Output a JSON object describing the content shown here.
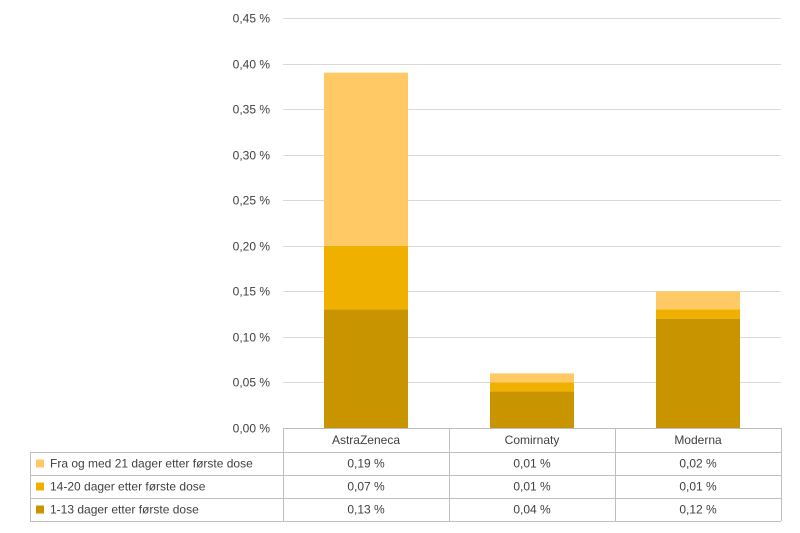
{
  "chart_data": {
    "type": "bar",
    "stacked": true,
    "categories": [
      "AstraZeneca",
      "Comirnaty",
      "Moderna"
    ],
    "series": [
      {
        "name": "Fra og med 21 dager etter første dose",
        "values": [
          0.19,
          0.01,
          0.02
        ],
        "labels": [
          "0,19 %",
          "0,01 %",
          "0,02 %"
        ],
        "color": "#FFC966"
      },
      {
        "name": "14-20 dager etter første dose",
        "values": [
          0.07,
          0.01,
          0.01
        ],
        "labels": [
          "0,07 %",
          "0,01 %",
          "0,01 %"
        ],
        "color": "#F0B000"
      },
      {
        "name": "1-13 dager etter første dose",
        "values": [
          0.13,
          0.04,
          0.12
        ],
        "labels": [
          "0,13 %",
          "0,04 %",
          "0,12 %"
        ],
        "color": "#C89500"
      }
    ],
    "stack_order": [
      2,
      1,
      0
    ],
    "ylim": [
      0,
      0.45
    ],
    "yticks": [
      {
        "value": 0.0,
        "label": "0,00 %"
      },
      {
        "value": 0.05,
        "label": "0,05 %"
      },
      {
        "value": 0.1,
        "label": "0,10 %"
      },
      {
        "value": 0.15,
        "label": "0,15 %"
      },
      {
        "value": 0.2,
        "label": "0,20 %"
      },
      {
        "value": 0.25,
        "label": "0,25 %"
      },
      {
        "value": 0.3,
        "label": "0,30 %"
      },
      {
        "value": 0.35,
        "label": "0,35 %"
      },
      {
        "value": 0.4,
        "label": "0,40 %"
      },
      {
        "value": 0.45,
        "label": "0,45 %"
      }
    ],
    "grid": true,
    "legend": "data-table",
    "gridline_color": "#D9D9D9"
  }
}
